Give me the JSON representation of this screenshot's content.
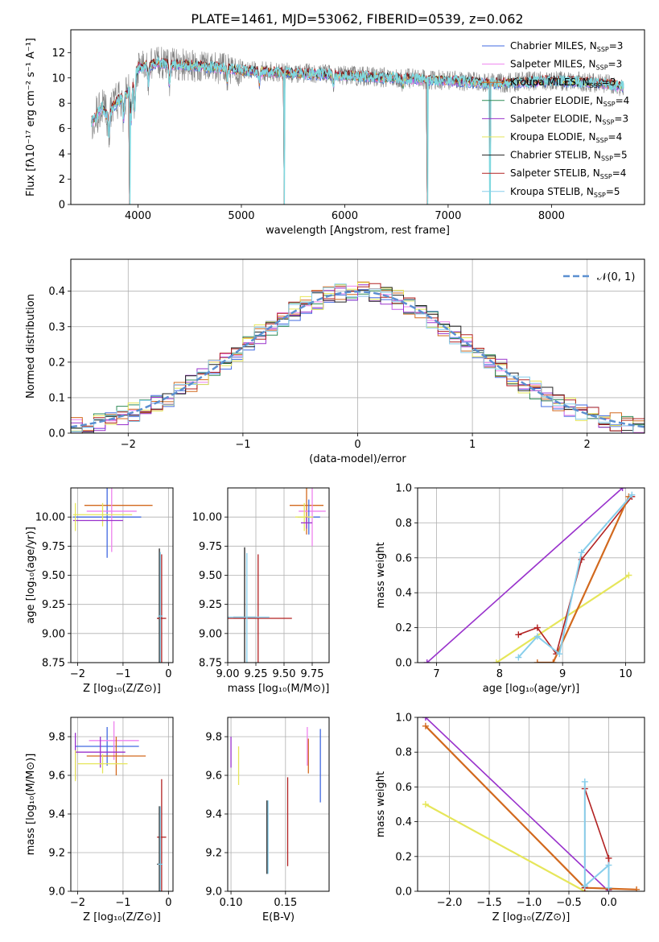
{
  "figure_title": "PLATE=1461, MJD=53062, FIBERID=0539, z=0.062",
  "legend_models": [
    {
      "name": "Chabrier MILES, N",
      "sub": "SSP",
      "tail": "=3",
      "color": "#4169e1"
    },
    {
      "name": "Salpeter MILES, N",
      "sub": "SSP",
      "tail": "=3",
      "color": "#ee82ee"
    },
    {
      "name": "Kroupa MILES, N",
      "sub": "SSP",
      "tail": "=3",
      "color": "#d2691e"
    },
    {
      "name": "Chabrier ELODIE, N",
      "sub": "SSP",
      "tail": "=4",
      "color": "#2e8b57"
    },
    {
      "name": "Salpeter ELODIE, N",
      "sub": "SSP",
      "tail": "=3",
      "color": "#9932cc"
    },
    {
      "name": "Kroupa ELODIE, N",
      "sub": "SSP",
      "tail": "=4",
      "color": "#e6e65a"
    },
    {
      "name": "Chabrier STELIB, N",
      "sub": "SSP",
      "tail": "=5",
      "color": "#222222"
    },
    {
      "name": "Salpeter STELIB, N",
      "sub": "SSP",
      "tail": "=4",
      "color": "#b22222"
    },
    {
      "name": "Kroupa STELIB, N",
      "sub": "SSP",
      "tail": "=5",
      "color": "#87ceeb"
    }
  ],
  "chart_data": [
    {
      "id": "spectrum",
      "type": "line",
      "xlabel": "wavelength [Angstrom, rest frame]",
      "ylabel": "Flux [fλ10⁻¹⁷ erg cm⁻² s⁻¹ A⁻¹]",
      "xlim": [
        3350,
        8900
      ],
      "ylim": [
        0,
        13.8
      ],
      "xticks": [
        4000,
        5000,
        6000,
        7000,
        8000
      ],
      "yticks": [
        0,
        2,
        4,
        6,
        8,
        10,
        12
      ],
      "grid": false,
      "legend": "top-right",
      "data_color": "#808080",
      "model_color": "#7fd8df",
      "continuum": {
        "x": [
          3550,
          3600,
          3650,
          3700,
          3800,
          3900,
          3950,
          4000,
          4100,
          4200,
          4300,
          4500,
          4800,
          5000,
          5500,
          6000,
          6500,
          7000,
          7500,
          8000,
          8500,
          8700
        ],
        "y": [
          6.5,
          7.0,
          7.8,
          7.0,
          8.2,
          8.8,
          9.5,
          10.8,
          11.0,
          11.2,
          11.1,
          11.0,
          10.8,
          10.6,
          10.4,
          10.2,
          10.0,
          9.8,
          9.6,
          9.8,
          9.6,
          9.3
        ]
      },
      "absorption_features": [
        {
          "x": 3720,
          "depth": 1.6
        },
        {
          "x": 3860,
          "depth": 1.8
        },
        {
          "x": 3933,
          "depth": 2.6
        },
        {
          "x": 3968,
          "depth": 2.4
        },
        {
          "x": 4102,
          "depth": 1.4
        },
        {
          "x": 4305,
          "depth": 1.6
        },
        {
          "x": 4861,
          "depth": 0.9
        },
        {
          "x": 5175,
          "depth": 1.0
        },
        {
          "x": 5890,
          "depth": 0.8
        },
        {
          "x": 6563,
          "depth": 0.6
        }
      ],
      "masked_drops": [
        3920,
        5415,
        6800,
        7405
      ]
    },
    {
      "id": "residuals",
      "type": "histogram",
      "xlabel": "(data-model)/error",
      "ylabel": "Normed distribution",
      "xlim": [
        -2.5,
        2.5
      ],
      "ylim": [
        0,
        0.49
      ],
      "xticks": [
        -2,
        -1,
        0,
        1,
        2
      ],
      "yticks": [
        0.0,
        0.1,
        0.2,
        0.3,
        0.4
      ],
      "grid": true,
      "legend": "top-right",
      "reference_label": "𝒩(0, 1)",
      "reference_color": "#5b8fd0",
      "bin_width": 0.1
    },
    {
      "id": "age_vs_Z",
      "type": "errorbar",
      "xlabel": "Z [log₁₀(Z/Z⊙)]",
      "ylabel": "age  [log₁₀(age/yr)]",
      "xlim": [
        -2.15,
        0.1
      ],
      "ylim": [
        8.75,
        10.25
      ],
      "xticks": [
        -2,
        -1,
        0
      ],
      "yticks": [
        8.75,
        9.0,
        9.25,
        9.5,
        9.75,
        10.0
      ],
      "grid": true,
      "points": [
        {
          "x": -1.35,
          "y": 10.0,
          "xerr": 0.75,
          "yerr": 0.35,
          "color": "#4169e1"
        },
        {
          "x": -1.1,
          "y": 10.1,
          "xerr": 0.75,
          "yerr": 0.0,
          "color": "#d2691e"
        },
        {
          "x": -1.25,
          "y": 10.05,
          "xerr": 0.55,
          "yerr": 0.35,
          "color": "#ee82ee"
        },
        {
          "x": -1.45,
          "y": 10.02,
          "xerr": 0.65,
          "yerr": 0.1,
          "color": "#e6e65a"
        },
        {
          "x": -1.55,
          "y": 9.97,
          "xerr": 0.55,
          "yerr": 0.0,
          "color": "#9932cc"
        },
        {
          "x": -2.05,
          "y": 10.0,
          "xerr": 0.0,
          "yerr": 0.12,
          "color": "#e6e65a"
        },
        {
          "x": -0.2,
          "y": 9.13,
          "xerr": 0.05,
          "yerr": 0.6,
          "color": "#222222"
        },
        {
          "x": -0.15,
          "y": 9.13,
          "xerr": 0.1,
          "yerr": 0.55,
          "color": "#b22222"
        },
        {
          "x": -0.18,
          "y": 9.15,
          "xerr": 0.05,
          "yerr": 0.55,
          "color": "#87ceeb"
        }
      ]
    },
    {
      "id": "age_vs_mass",
      "type": "errorbar",
      "xlabel": "mass [log₁₀(M/M⊙)]",
      "ylabel": "",
      "xlim": [
        9.0,
        9.9
      ],
      "ylim": [
        8.75,
        10.25
      ],
      "xticks": [
        9.0,
        9.25,
        9.5,
        9.75
      ],
      "yticks": [
        8.75,
        9.0,
        9.25,
        9.5,
        9.75,
        10.0
      ],
      "grid": true,
      "points": [
        {
          "x": 9.7,
          "y": 10.1,
          "xerr": 0.15,
          "yerr": 0.25,
          "color": "#d2691e"
        },
        {
          "x": 9.75,
          "y": 10.05,
          "xerr": 0.12,
          "yerr": 0.3,
          "color": "#ee82ee"
        },
        {
          "x": 9.72,
          "y": 10.0,
          "xerr": 0.1,
          "yerr": 0.15,
          "color": "#4169e1"
        },
        {
          "x": 9.68,
          "y": 10.0,
          "xerr": 0.08,
          "yerr": 0.12,
          "color": "#e6e65a"
        },
        {
          "x": 9.7,
          "y": 9.95,
          "xerr": 0.05,
          "yerr": 0.05,
          "color": "#9932cc"
        },
        {
          "x": 9.15,
          "y": 9.14,
          "xerr": 0.1,
          "yerr": 0.6,
          "color": "#222222"
        },
        {
          "x": 9.27,
          "y": 9.13,
          "xerr": 0.3,
          "yerr": 0.55,
          "color": "#b22222"
        },
        {
          "x": 9.17,
          "y": 9.14,
          "xerr": 0.2,
          "yerr": 0.55,
          "color": "#87ceeb"
        }
      ]
    },
    {
      "id": "weight_vs_age",
      "type": "line",
      "xlabel": "age  [log₁₀(age/yr)]",
      "ylabel": "mass weight",
      "xlim": [
        6.7,
        10.3
      ],
      "ylim": [
        0,
        1.0
      ],
      "xticks": [
        7,
        8,
        9,
        10
      ],
      "yticks": [
        0.0,
        0.2,
        0.4,
        0.6,
        0.8,
        1.0
      ],
      "grid": true,
      "series": [
        {
          "color": "#9932cc",
          "width": 1.6,
          "x": [
            6.85,
            9.95
          ],
          "y": [
            0.0,
            1.0
          ]
        },
        {
          "color": "#e6e65a",
          "width": 2.2,
          "x": [
            7.95,
            10.05
          ],
          "y": [
            0.0,
            0.5
          ]
        },
        {
          "color": "#b22222",
          "width": 1.6,
          "x": [
            8.3,
            8.6,
            8.9,
            9.3,
            10.1
          ],
          "y": [
            0.16,
            0.2,
            0.05,
            0.59,
            0.95
          ]
        },
        {
          "color": "#d2691e",
          "width": 2.2,
          "x": [
            8.6,
            8.85,
            10.05
          ],
          "y": [
            0.0,
            0.0,
            0.95
          ]
        },
        {
          "color": "#87ceeb",
          "width": 2.0,
          "x": [
            8.3,
            8.6,
            8.95,
            9.3,
            10.1
          ],
          "y": [
            0.03,
            0.15,
            0.05,
            0.63,
            0.96
          ]
        }
      ]
    },
    {
      "id": "mass_vs_Z",
      "type": "errorbar",
      "xlabel": "Z [log₁₀(Z/Z⊙)]",
      "ylabel": "mass [log₁₀(M/M⊙)]",
      "xlim": [
        -2.15,
        0.1
      ],
      "ylim": [
        9.0,
        9.9
      ],
      "xticks": [
        -2,
        -1,
        0
      ],
      "yticks": [
        9.0,
        9.2,
        9.4,
        9.6,
        9.8
      ],
      "grid": true,
      "points": [
        {
          "x": -1.35,
          "y": 9.75,
          "xerr": 0.7,
          "yerr": 0.1,
          "color": "#4169e1"
        },
        {
          "x": -1.2,
          "y": 9.78,
          "xerr": 0.55,
          "yerr": 0.1,
          "color": "#ee82ee"
        },
        {
          "x": -1.15,
          "y": 9.7,
          "xerr": 0.65,
          "yerr": 0.1,
          "color": "#d2691e"
        },
        {
          "x": -1.5,
          "y": 9.72,
          "xerr": 0.55,
          "yerr": 0.08,
          "color": "#9932cc"
        },
        {
          "x": -1.45,
          "y": 9.66,
          "xerr": 0.55,
          "yerr": 0.05,
          "color": "#e6e65a"
        },
        {
          "x": -2.05,
          "y": 9.7,
          "xerr": 0.0,
          "yerr": 0.12,
          "color": "#9932cc"
        },
        {
          "x": -2.05,
          "y": 9.65,
          "xerr": 0.0,
          "yerr": 0.08,
          "color": "#e6e65a"
        },
        {
          "x": -0.15,
          "y": 9.28,
          "xerr": 0.1,
          "yerr": 0.3,
          "color": "#b22222"
        },
        {
          "x": -0.2,
          "y": 9.14,
          "xerr": 0.05,
          "yerr": 0.3,
          "color": "#222222"
        },
        {
          "x": -0.18,
          "y": 9.14,
          "xerr": 0.05,
          "yerr": 0.3,
          "color": "#87ceeb"
        }
      ]
    },
    {
      "id": "mass_vs_ebv",
      "type": "errorbar",
      "xlabel": "E(B-V)",
      "ylabel": "",
      "xlim": [
        0.097,
        0.19
      ],
      "ylim": [
        9.0,
        9.9
      ],
      "xticks": [
        0.1,
        0.15
      ],
      "yticks": [
        9.0,
        9.2,
        9.4,
        9.6,
        9.8
      ],
      "grid": true,
      "points": [
        {
          "x": 0.1,
          "y": 9.72,
          "xerr": 0,
          "yerr": 0.08,
          "color": "#9932cc"
        },
        {
          "x": 0.107,
          "y": 9.65,
          "xerr": 0,
          "yerr": 0.1,
          "color": "#e6e65a"
        },
        {
          "x": 0.133,
          "y": 9.28,
          "xerr": 0,
          "yerr": 0.19,
          "color": "#222222"
        },
        {
          "x": 0.134,
          "y": 9.28,
          "xerr": 0,
          "yerr": 0.19,
          "color": "#87ceeb"
        },
        {
          "x": 0.152,
          "y": 9.36,
          "xerr": 0,
          "yerr": 0.23,
          "color": "#b22222"
        },
        {
          "x": 0.17,
          "y": 9.75,
          "xerr": 0,
          "yerr": 0.1,
          "color": "#ee82ee"
        },
        {
          "x": 0.171,
          "y": 9.7,
          "xerr": 0,
          "yerr": 0.09,
          "color": "#d2691e"
        },
        {
          "x": 0.182,
          "y": 9.65,
          "xerr": 0,
          "yerr": 0.19,
          "color": "#4169e1"
        }
      ]
    },
    {
      "id": "weight_vs_Z",
      "type": "line",
      "xlabel": "Z [log₁₀(Z/Z⊙)]",
      "ylabel": "mass weight",
      "xlim": [
        -2.4,
        0.45
      ],
      "ylim": [
        0,
        1.0
      ],
      "xticks": [
        -2.0,
        -1.5,
        -1.0,
        -0.5,
        0.0
      ],
      "yticks": [
        0.0,
        0.2,
        0.4,
        0.6,
        0.8,
        1.0
      ],
      "grid": true,
      "series": [
        {
          "color": "#9932cc",
          "width": 1.6,
          "x": [
            -2.3,
            0.0
          ],
          "y": [
            1.0,
            0.0
          ]
        },
        {
          "color": "#e6e65a",
          "width": 2.2,
          "x": [
            -2.3,
            -0.3
          ],
          "y": [
            0.5,
            0.0
          ]
        },
        {
          "color": "#d2691e",
          "width": 2.2,
          "x": [
            -2.3,
            -0.3,
            0.35
          ],
          "y": [
            0.95,
            0.02,
            0.01
          ]
        },
        {
          "color": "#b22222",
          "width": 1.6,
          "x": [
            -0.3,
            -0.3,
            0.0,
            0.0
          ],
          "y": [
            0.02,
            0.59,
            0.19,
            0.01
          ]
        },
        {
          "color": "#87ceeb",
          "width": 2.0,
          "x": [
            -0.3,
            -0.3,
            -0.3,
            0.0,
            0.0
          ],
          "y": [
            0.63,
            0.03,
            0.03,
            0.15,
            0.02
          ]
        }
      ]
    }
  ]
}
